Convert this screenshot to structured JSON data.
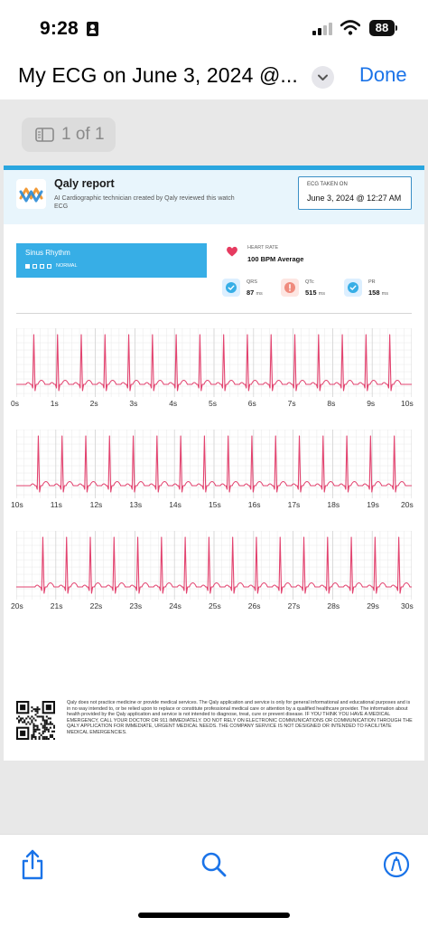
{
  "status_bar": {
    "time": "9:28",
    "battery": "88"
  },
  "nav": {
    "title": "My ECG on June 3, 2024 @...",
    "done_label": "Done"
  },
  "viewer": {
    "page_indicator": "1 of 1"
  },
  "report": {
    "title": "Qaly report",
    "subtitle": "AI Cardiographic technician created by Qaly reviewed this watch ECG",
    "ecg_taken_label": "ECG TAKEN ON",
    "ecg_taken_value": "June 3, 2024 @ 12:27 AM",
    "rhythm": {
      "title": "Sinus Rhythm",
      "label": "NORMAL"
    },
    "heart_rate": {
      "label": "HEART RATE",
      "value": "100 BPM Average"
    },
    "metrics": [
      {
        "name": "QRS",
        "value": "87",
        "unit": "ms",
        "status": "normal",
        "color": "#37aee6"
      },
      {
        "name": "QTc",
        "value": "515",
        "unit": "ms",
        "status": "alert",
        "color": "#ef8a7c"
      },
      {
        "name": "PR",
        "value": "158",
        "unit": "ms",
        "status": "normal",
        "color": "#37aee6"
      }
    ],
    "strips": [
      {
        "ticks": [
          "0s",
          "1s",
          "2s",
          "3s",
          "4s",
          "5s",
          "6s",
          "7s",
          "8s",
          "9s",
          "10s"
        ]
      },
      {
        "ticks": [
          "10s",
          "11s",
          "12s",
          "13s",
          "14s",
          "15s",
          "16s",
          "17s",
          "18s",
          "19s",
          "20s"
        ]
      },
      {
        "ticks": [
          "20s",
          "21s",
          "22s",
          "23s",
          "24s",
          "25s",
          "26s",
          "27s",
          "28s",
          "29s",
          "30s"
        ]
      }
    ],
    "disclaimer": "Qaly does not practice medicine or provide medical services. The Qaly application and service is only for general informational and educational purposes and is in no way intended to, or be relied upon to replace or constitute professional medical care or attention by a qualified healthcare provider. The information about health provided by the Qaly application and service is not intended to diagnose, treat, cure or prevent disease. IF YOU THINK YOU HAVE A MEDICAL EMERGENCY, CALL YOUR DOCTOR OR 911 IMMEDIATELY. DO NOT RELY ON ELECTRONIC COMMUNICATIONS OR COMMUNICATION THROUGH THE QALY APPLICATION FOR IMMEDIATE, URGENT MEDICAL NEEDS. THE COMPANY SERVICE IS NOT DESIGNED OR INTENDED TO FACILITATE MEDICAL EMERGENCIES."
  },
  "colors": {
    "accent": "#1a73e8",
    "report_blue": "#37aee6",
    "ecg_trace": "#e2436f",
    "grid": "#f4c9d4"
  },
  "icons": [
    "person-icon",
    "signal-icon",
    "wifi-icon",
    "chevron-down-icon",
    "sidebar-icon",
    "heart-icon",
    "check-icon",
    "alert-icon",
    "qr-code-icon",
    "share-icon",
    "search-icon",
    "markup-icon"
  ]
}
